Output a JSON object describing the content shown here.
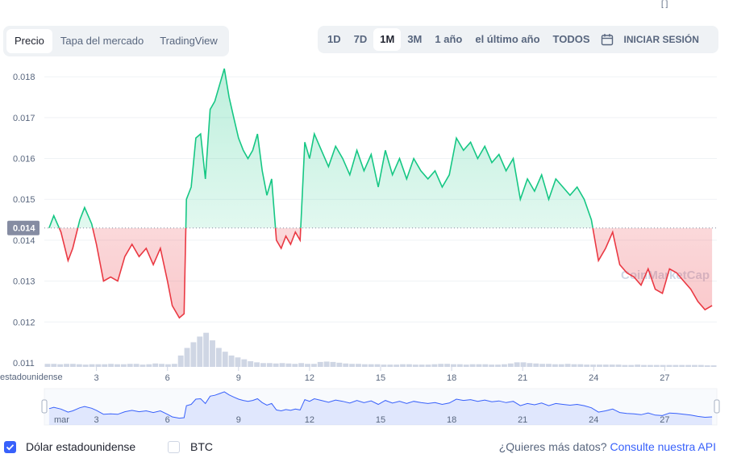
{
  "header": {
    "tabs": [
      {
        "label": "Precio",
        "active": true
      },
      {
        "label": "Tapa del mercado",
        "active": false
      },
      {
        "label": "TradingView",
        "active": false
      }
    ],
    "ranges": [
      {
        "label": "1D",
        "active": false
      },
      {
        "label": "7D",
        "active": false
      },
      {
        "label": "1M",
        "active": true
      },
      {
        "label": "3M",
        "active": false
      },
      {
        "label": "1 año",
        "active": false
      },
      {
        "label": "el último año",
        "active": false
      },
      {
        "label": "TODOS",
        "active": false
      }
    ],
    "calendar_icon": "calendar-icon",
    "login_label": "INICIAR SESIÓN",
    "top_mark": "[ ]"
  },
  "chart_data": {
    "type": "area",
    "watermark": "CoinMarketCap",
    "baseline": 0.0143,
    "baseline_label": "0.014",
    "yticks": [
      "0.018",
      "0.017",
      "0.016",
      "0.015",
      "0.014",
      "0.013",
      "0.012",
      "0.011"
    ],
    "ylim": [
      0.0109,
      0.0183
    ],
    "xticks": [
      "3",
      "6",
      "9",
      "12",
      "15",
      "18",
      "21",
      "24",
      "27"
    ],
    "xlim": [
      0.8,
      29.2
    ],
    "xaxis_partial_label": "estadounidense",
    "navigator_first_label": "mar",
    "colors": {
      "up": "#16c784",
      "down": "#ea3943",
      "volume": "#cfd6e4",
      "navigator": "#3861fb"
    },
    "series": [
      {
        "x": [
          1.0,
          1.2,
          1.5,
          1.8,
          2.0,
          2.3,
          2.5,
          2.8,
          3.0,
          3.3,
          3.6,
          3.9,
          4.2,
          4.5,
          4.8,
          5.1,
          5.4,
          5.7,
          6.0,
          6.2,
          6.5,
          6.7,
          6.8,
          7.0,
          7.2,
          7.4,
          7.6,
          7.8,
          8.0,
          8.2,
          8.4,
          8.6,
          8.8,
          9.0,
          9.2,
          9.4,
          9.6,
          9.8,
          10.0,
          10.2,
          10.4,
          10.6,
          10.8,
          11.0,
          11.2,
          11.4,
          11.6,
          11.8,
          12.0,
          12.2,
          12.5,
          12.8,
          13.1,
          13.4,
          13.7,
          14.0,
          14.3,
          14.6,
          14.9,
          15.2,
          15.5,
          15.8,
          16.1,
          16.4,
          16.7,
          17.0,
          17.3,
          17.6,
          17.9,
          18.2,
          18.5,
          18.8,
          19.1,
          19.4,
          19.7,
          20.0,
          20.3,
          20.6,
          20.9,
          21.2,
          21.5,
          21.8,
          22.1,
          22.4,
          22.7,
          23.0,
          23.3,
          23.6,
          23.9,
          24.2,
          24.5,
          24.8,
          25.1,
          25.4,
          25.7,
          26.0,
          26.3,
          26.6,
          26.9,
          27.2,
          27.5,
          27.8,
          28.1,
          28.4,
          28.7,
          29.0
        ],
        "y": [
          0.0143,
          0.0146,
          0.0142,
          0.0135,
          0.0138,
          0.0145,
          0.0148,
          0.0144,
          0.0139,
          0.013,
          0.0131,
          0.013,
          0.0136,
          0.0139,
          0.0136,
          0.0138,
          0.0134,
          0.0138,
          0.013,
          0.0124,
          0.0121,
          0.0122,
          0.015,
          0.0153,
          0.0165,
          0.0166,
          0.0155,
          0.0172,
          0.0174,
          0.0178,
          0.0182,
          0.0175,
          0.017,
          0.0165,
          0.0162,
          0.016,
          0.0162,
          0.0166,
          0.0157,
          0.0151,
          0.0155,
          0.014,
          0.0138,
          0.0141,
          0.0139,
          0.0142,
          0.014,
          0.0164,
          0.016,
          0.0166,
          0.0162,
          0.0158,
          0.0163,
          0.016,
          0.0156,
          0.0162,
          0.0157,
          0.0161,
          0.0153,
          0.0162,
          0.0156,
          0.016,
          0.0155,
          0.016,
          0.0157,
          0.0155,
          0.0157,
          0.0153,
          0.0156,
          0.0165,
          0.0162,
          0.0164,
          0.016,
          0.0163,
          0.0159,
          0.0161,
          0.0157,
          0.016,
          0.015,
          0.0155,
          0.0152,
          0.0156,
          0.015,
          0.0155,
          0.0153,
          0.0151,
          0.0153,
          0.015,
          0.0145,
          0.0135,
          0.0138,
          0.0142,
          0.0134,
          0.0132,
          0.0131,
          0.0129,
          0.0133,
          0.0128,
          0.0127,
          0.0133,
          0.0132,
          0.013,
          0.0128,
          0.0125,
          0.0123,
          0.0124
        ]
      }
    ],
    "volume": [
      0.08,
      0.08,
      0.07,
      0.08,
      0.08,
      0.07,
      0.06,
      0.07,
      0.07,
      0.07,
      0.08,
      0.07,
      0.07,
      0.08,
      0.08,
      0.06,
      0.07,
      0.09,
      0.08,
      0.07,
      0.08,
      0.3,
      0.5,
      0.65,
      0.8,
      0.9,
      0.7,
      0.5,
      0.4,
      0.3,
      0.25,
      0.2,
      0.15,
      0.12,
      0.1,
      0.1,
      0.09,
      0.1,
      0.09,
      0.08,
      0.1,
      0.08,
      0.08,
      0.13,
      0.14,
      0.13,
      0.11,
      0.09,
      0.08,
      0.08,
      0.07,
      0.07,
      0.07,
      0.06,
      0.06,
      0.06,
      0.07,
      0.07,
      0.06,
      0.06,
      0.06,
      0.07,
      0.08,
      0.08,
      0.07,
      0.07,
      0.06,
      0.07,
      0.07,
      0.07,
      0.06,
      0.06,
      0.07,
      0.09,
      0.12,
      0.12,
      0.1,
      0.09,
      0.08,
      0.08,
      0.07,
      0.07,
      0.08,
      0.07,
      0.07,
      0.06,
      0.06,
      0.06,
      0.06,
      0.06,
      0.06,
      0.05,
      0.05,
      0.06,
      0.05,
      0.05,
      0.05,
      0.05,
      0.05,
      0.05,
      0.05,
      0.05,
      0.05,
      0.05,
      0.04,
      0.04
    ]
  },
  "footer": {
    "options": [
      {
        "label": "Dólar estadounidense",
        "checked": true
      },
      {
        "label": "BTC",
        "checked": false
      }
    ],
    "api_prompt": "¿Quieres más datos?",
    "api_link": "Consulte nuestra API"
  }
}
